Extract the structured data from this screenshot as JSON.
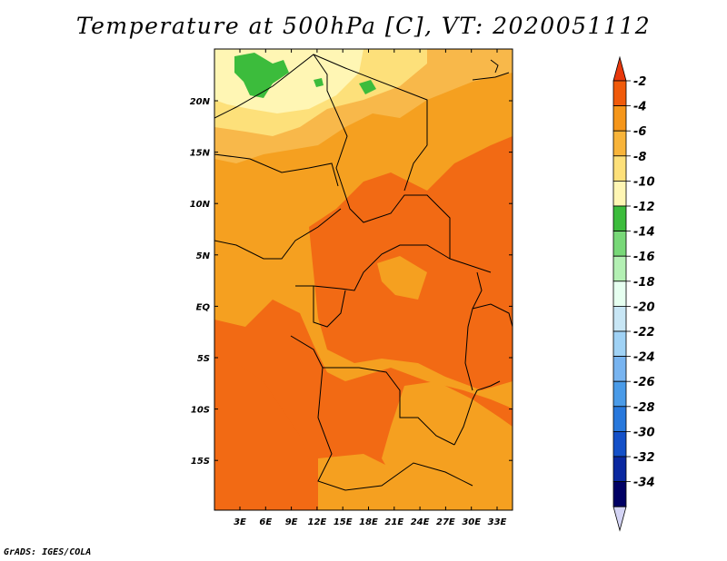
{
  "title": "Temperature at 500hPa [C], VT: 2020051112",
  "credit": "GrADS: IGES/COLA",
  "map": {
    "lat_labels": [
      "20N",
      "15N",
      "10N",
      "5N",
      "EQ",
      "5S",
      "10S",
      "15S"
    ],
    "lon_labels": [
      "3E",
      "6E",
      "9E",
      "12E",
      "15E",
      "18E",
      "21E",
      "24E",
      "27E",
      "30E",
      "33E"
    ]
  },
  "colorbar": {
    "labels": [
      "-2",
      "-4",
      "-6",
      "-8",
      "-10",
      "-12",
      "-14",
      "-16",
      "-18",
      "-20",
      "-22",
      "-24",
      "-26",
      "-28",
      "-30",
      "-32",
      "-34"
    ],
    "colors": [
      "#e8380c",
      "#f05a0a",
      "#f5961a",
      "#f8b43a",
      "#fde07a",
      "#fff6b4",
      "#3cbc3c",
      "#78d878",
      "#b4f0b4",
      "#e6fff0",
      "#c8e6f5",
      "#a0d2f5",
      "#78b4f0",
      "#4a9be8",
      "#2878dc",
      "#1450c8",
      "#0a28a0",
      "#000064",
      "#d4d4f5"
    ]
  }
}
